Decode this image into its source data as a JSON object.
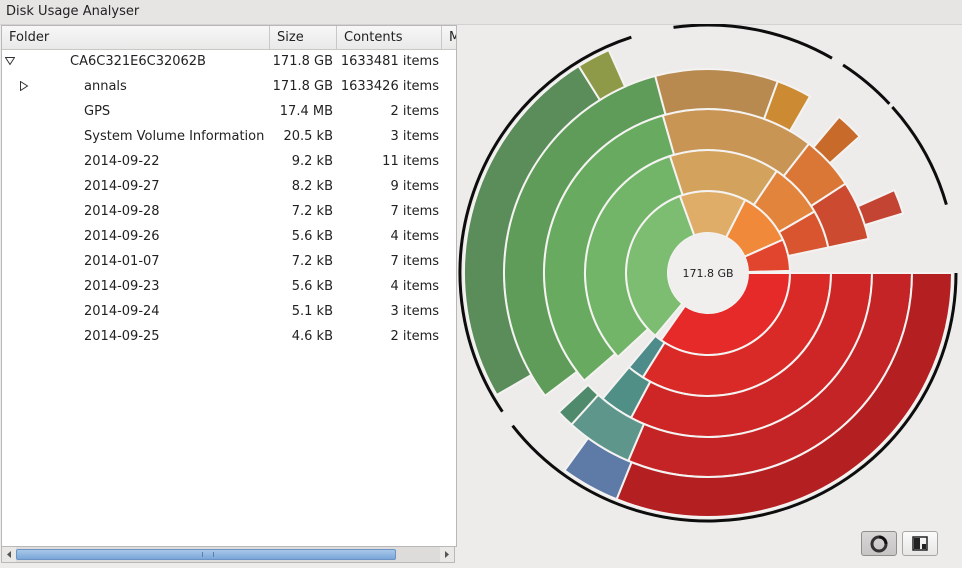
{
  "window": {
    "title": "Disk Usage Analyser"
  },
  "columns": {
    "folder": "Folder",
    "size": "Size",
    "contents": "Contents",
    "more": "M"
  },
  "rows": [
    {
      "name": "CA6C321E6C32062B",
      "size": "171.8 GB",
      "contents": "1633481 items",
      "expander": "expanded"
    },
    {
      "name": "annals",
      "size": "171.8 GB",
      "contents": "1633426 items",
      "expander": "collapsed"
    },
    {
      "name": "GPS",
      "size": "17.4 MB",
      "contents": "2 items",
      "expander": "none"
    },
    {
      "name": "System Volume Information",
      "size": "20.5 kB",
      "contents": "3 items",
      "expander": "none"
    },
    {
      "name": "2014-09-22",
      "size": "9.2 kB",
      "contents": "11 items",
      "expander": "none"
    },
    {
      "name": "2014-09-27",
      "size": "8.2 kB",
      "contents": "9 items",
      "expander": "none"
    },
    {
      "name": "2014-09-28",
      "size": "7.2 kB",
      "contents": "7 items",
      "expander": "none"
    },
    {
      "name": "2014-09-26",
      "size": "5.6 kB",
      "contents": "4 items",
      "expander": "none"
    },
    {
      "name": "2014-01-07",
      "size": "7.2 kB",
      "contents": "7 items",
      "expander": "none"
    },
    {
      "name": "2014-09-23",
      "size": "5.6 kB",
      "contents": "4 items",
      "expander": "none"
    },
    {
      "name": "2014-09-24",
      "size": "5.1 kB",
      "contents": "3 items",
      "expander": "none"
    },
    {
      "name": "2014-09-25",
      "size": "4.6 kB",
      "contents": "2 items",
      "expander": "none"
    }
  ],
  "chart": {
    "center_label": "171.8 GB"
  },
  "toolbar": {
    "ring_chart_icon": "ring-chart-icon",
    "treemap_icon": "treemap-icon"
  },
  "colors": {
    "selection_thumb": "#7aa6d8",
    "root_ring": "#ef2b2b"
  }
}
